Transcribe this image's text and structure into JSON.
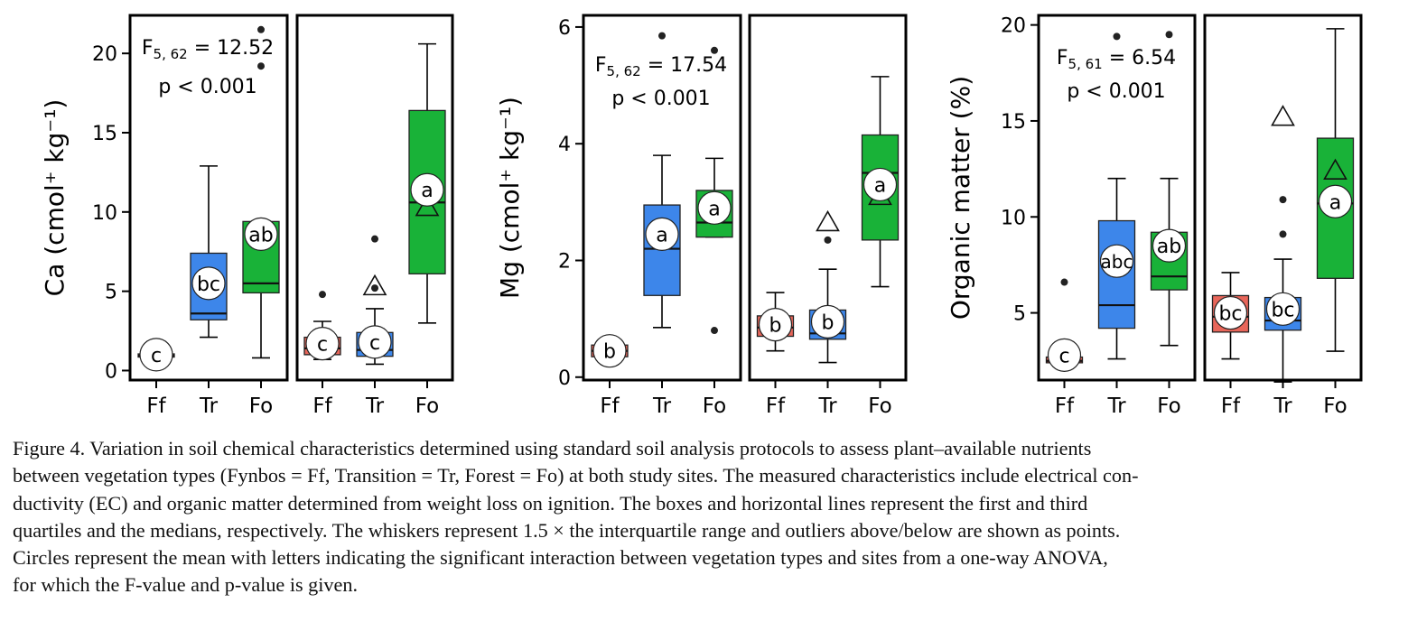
{
  "colors": {
    "Ff": "#e8665a",
    "Tr": "#3d86ea",
    "Fo": "#19b238",
    "frame": "#000000"
  },
  "chart_data": [
    {
      "type": "box",
      "ylabel": "Ca (cmol⁺ kg⁻¹)",
      "ylim": [
        -0.6,
        22.4
      ],
      "yticks": [
        0,
        5,
        10,
        15,
        20
      ],
      "stats": {
        "line1_main": "F",
        "line1_sub": "5, 62",
        "line1_rest": " = 12.52",
        "line2": "p < 0.001"
      },
      "panels": [
        {
          "categories": [
            "Ff",
            "Tr",
            "Fo"
          ],
          "boxes": [
            {
              "category": "Ff",
              "q1": 0.85,
              "median": 0.95,
              "q3": 1.05,
              "low": 0.85,
              "high": 1.05,
              "mean": 1.0,
              "letter": "c",
              "outliers": [],
              "triangle": null
            },
            {
              "category": "Tr",
              "q1": 3.2,
              "median": 3.6,
              "q3": 7.4,
              "low": 2.1,
              "high": 12.9,
              "mean": 5.5,
              "letter": "bc",
              "outliers": [],
              "triangle": null
            },
            {
              "category": "Fo",
              "q1": 4.9,
              "median": 5.5,
              "q3": 9.4,
              "low": 0.8,
              "high": 9.4,
              "mean": 8.6,
              "letter": "ab",
              "outliers": [
                19.2,
                21.5
              ],
              "triangle": null
            }
          ]
        },
        {
          "categories": [
            "Ff",
            "Tr",
            "Fo"
          ],
          "boxes": [
            {
              "category": "Ff",
              "q1": 1.0,
              "median": 1.4,
              "q3": 2.1,
              "low": 0.7,
              "high": 3.1,
              "mean": 1.7,
              "letter": "c",
              "outliers": [
                4.8
              ],
              "triangle": null
            },
            {
              "category": "Tr",
              "q1": 0.9,
              "median": 1.3,
              "q3": 2.4,
              "low": 0.4,
              "high": 3.9,
              "mean": 1.8,
              "letter": "c",
              "outliers": [
                5.2,
                8.3
              ],
              "triangle": 5.3
            },
            {
              "category": "Fo",
              "q1": 6.1,
              "median": 10.6,
              "q3": 16.4,
              "low": 3.0,
              "high": 20.6,
              "mean": 11.4,
              "letter": "a",
              "outliers": [],
              "triangle": 10.3
            }
          ]
        }
      ]
    },
    {
      "type": "box",
      "ylabel": "Mg (cmol⁺ kg⁻¹)",
      "ylim": [
        -0.05,
        6.2
      ],
      "yticks": [
        0,
        2,
        4,
        6
      ],
      "stats": {
        "line1_main": "F",
        "line1_sub": "5, 62",
        "line1_rest": " = 17.54",
        "line2": "p < 0.001"
      },
      "panels": [
        {
          "categories": [
            "Ff",
            "Tr",
            "Fo"
          ],
          "boxes": [
            {
              "category": "Ff",
              "q1": 0.35,
              "median": 0.45,
              "q3": 0.55,
              "low": 0.35,
              "high": 0.55,
              "mean": 0.45,
              "letter": "b",
              "outliers": [],
              "triangle": null
            },
            {
              "category": "Tr",
              "q1": 1.4,
              "median": 2.2,
              "q3": 2.95,
              "low": 0.85,
              "high": 3.8,
              "mean": 2.45,
              "letter": "a",
              "outliers": [
                5.85
              ],
              "triangle": null
            },
            {
              "category": "Fo",
              "q1": 2.4,
              "median": 2.65,
              "q3": 3.2,
              "low": 2.4,
              "high": 3.75,
              "mean": 2.9,
              "letter": "a",
              "outliers": [
                0.8,
                5.6
              ],
              "triangle": null
            }
          ]
        },
        {
          "categories": [
            "Ff",
            "Tr",
            "Fo"
          ],
          "boxes": [
            {
              "category": "Ff",
              "q1": 0.7,
              "median": 0.85,
              "q3": 1.05,
              "low": 0.45,
              "high": 1.45,
              "mean": 0.9,
              "letter": "b",
              "outliers": [],
              "triangle": null
            },
            {
              "category": "Tr",
              "q1": 0.65,
              "median": 0.75,
              "q3": 1.15,
              "low": 0.25,
              "high": 1.85,
              "mean": 0.95,
              "letter": "b",
              "outliers": [
                2.35
              ],
              "triangle": 2.65
            },
            {
              "category": "Fo",
              "q1": 2.35,
              "median": 3.5,
              "q3": 4.15,
              "low": 1.55,
              "high": 5.15,
              "mean": 3.3,
              "letter": "a",
              "outliers": [],
              "triangle": 3.1
            }
          ]
        }
      ]
    },
    {
      "type": "box",
      "ylabel": "Organic matter (%)",
      "ylim": [
        1.5,
        20.5
      ],
      "yticks": [
        5,
        10,
        15,
        20
      ],
      "stats": {
        "line1_main": "F",
        "line1_sub": "5, 61",
        "line1_rest": " = 6.54",
        "line2": "p < 0.001"
      },
      "panels": [
        {
          "categories": [
            "Ff",
            "Tr",
            "Fo"
          ],
          "boxes": [
            {
              "category": "Ff",
              "q1": 2.4,
              "median": 2.5,
              "q3": 2.7,
              "low": 2.4,
              "high": 2.7,
              "mean": 2.8,
              "letter": "c",
              "outliers": [
                6.6
              ],
              "triangle": null
            },
            {
              "category": "Tr",
              "q1": 4.2,
              "median": 5.4,
              "q3": 9.8,
              "low": 2.6,
              "high": 12.0,
              "mean": 7.7,
              "letter": "abc",
              "outliers": [
                19.4
              ],
              "triangle": null
            },
            {
              "category": "Fo",
              "q1": 6.2,
              "median": 6.9,
              "q3": 9.2,
              "low": 3.3,
              "high": 12.0,
              "mean": 8.5,
              "letter": "ab",
              "outliers": [
                19.5
              ],
              "triangle": null
            }
          ]
        },
        {
          "categories": [
            "Ff",
            "Tr",
            "Fo"
          ],
          "boxes": [
            {
              "category": "Ff",
              "q1": 4.0,
              "median": 4.8,
              "q3": 5.9,
              "low": 2.6,
              "high": 7.1,
              "mean": 5.0,
              "letter": "bc",
              "outliers": [],
              "triangle": null
            },
            {
              "category": "Tr",
              "q1": 4.1,
              "median": 4.6,
              "q3": 5.8,
              "low": 1.4,
              "high": 7.8,
              "mean": 5.2,
              "letter": "bc",
              "outliers": [
                9.1,
                10.9
              ],
              "triangle": 15.2
            },
            {
              "category": "Fo",
              "q1": 6.8,
              "median": 10.7,
              "q3": 14.1,
              "low": 3.0,
              "high": 19.8,
              "mean": 10.8,
              "letter": "a",
              "outliers": [],
              "triangle": 12.4
            }
          ]
        }
      ]
    }
  ],
  "caption": [
    "Figure 4. Variation in soil chemical characteristics determined using standard soil analysis protocols to assess plant–available nutrients",
    "between vegetation types (Fynbos = Ff, Transition = Tr, Forest = Fo) at both study sites. The measured characteristics include electrical con-",
    "ductivity (EC) and organic matter determined from weight loss on ignition. The boxes and horizontal lines represent the first and third",
    "quartiles and the medians, respectively. The whiskers represent 1.5 × the interquartile range and outliers above/below are shown as points.",
    "Circles represent the mean with letters indicating the significant interaction between vegetation types and sites from a one-way ANOVA,",
    "for which the F-value and p-value is given."
  ]
}
